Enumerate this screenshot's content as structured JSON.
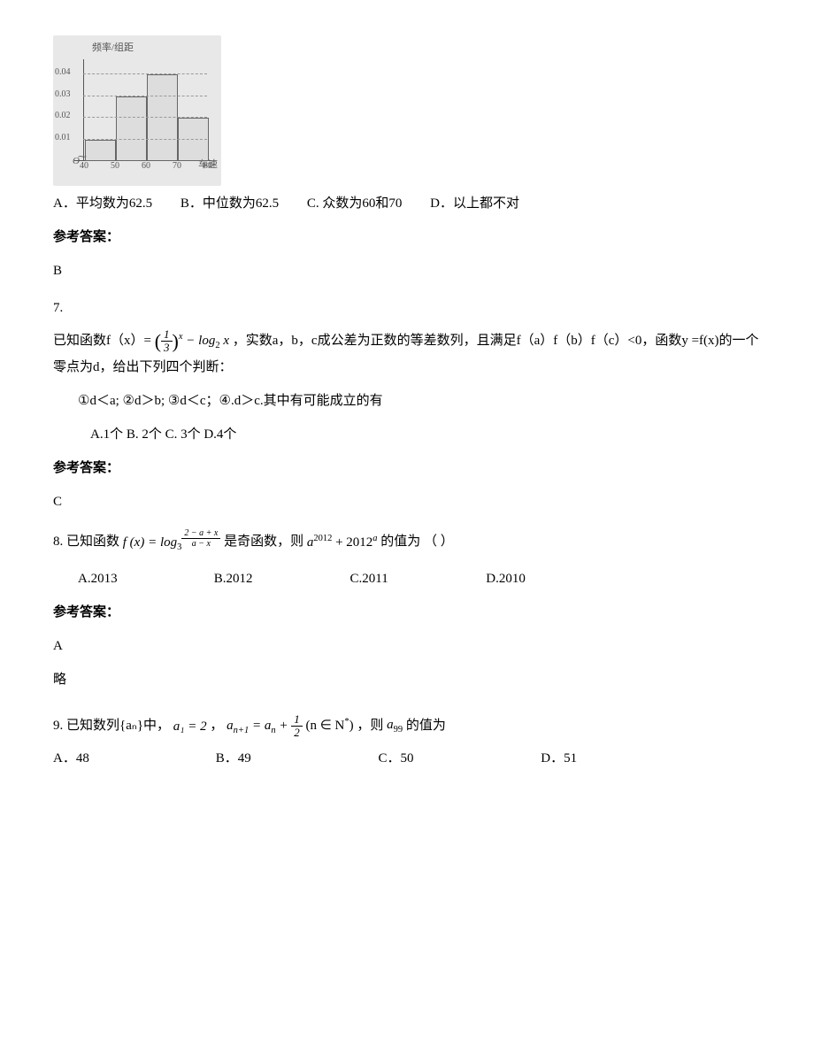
{
  "histogram": {
    "type": "histogram",
    "y_title": "频率/组距",
    "x_title": "车速",
    "origin_label": "O",
    "background_color": "#e8e8e8",
    "bar_border_color": "#666666",
    "axis_color": "#555555",
    "grid_dash_color": "#999999",
    "label_color": "#555555",
    "label_fontsize": 10,
    "title_fontsize": 11,
    "y_ticks": [
      "0.01",
      "0.02",
      "0.03",
      "0.04"
    ],
    "y_tick_values": [
      0.01,
      0.02,
      0.03,
      0.04
    ],
    "y_max": 0.045,
    "x_ticks": [
      "40",
      "50",
      "60",
      "70",
      "80"
    ],
    "x_tick_values": [
      40,
      50,
      60,
      70,
      80
    ],
    "bars": [
      {
        "x0": 40,
        "x1": 50,
        "height": 0.01
      },
      {
        "x0": 50,
        "x1": 60,
        "height": 0.03
      },
      {
        "x0": 60,
        "x1": 70,
        "height": 0.04
      },
      {
        "x0": 70,
        "x1": 80,
        "height": 0.02
      }
    ]
  },
  "q6": {
    "options": {
      "A": "A．平均数为62.5",
      "B": "B．中位数为62.5",
      "C": "C. 众数为60和70",
      "D": "D．以上都不对"
    },
    "answer_label": "参考答案：",
    "answer": "B"
  },
  "q7": {
    "number": "7.",
    "stem_before": "已知函数f（x）=",
    "formula_exp_frac_num": "1",
    "formula_exp_frac_den": "3",
    "formula_exp_power": "x",
    "formula_minus_log": "− log",
    "formula_log_base": "2",
    "formula_log_arg": " x",
    "stem_after1": "，实数a，b，c成公差为正数的等差数列，且满足f（a）f（b）f（c）<0，函数y =f(x)的一个零点为d，给出下列四个判断：",
    "judgments": "①d＜a;    ②d＞b;    ③d＜c；④.d＞c.其中有可能成立的有",
    "options_line": "A.1个 B. 2个 C. 3个 D.4个",
    "answer_label": "参考答案：",
    "answer": "C"
  },
  "q8": {
    "prefix": "8. 已知函数",
    "fx_label": "f (x) = log",
    "log_base": "3",
    "exp_num": "2 − a + x",
    "exp_den": "a − x",
    "mid": " 是奇函数，则",
    "a_term1_base": "a",
    "a_term1_exp": "2012",
    "plus": " + 2012",
    "a_term2_exp": "a",
    "tail": "的值为     （      ）",
    "options": {
      "A": "A.2013",
      "B": "B.2012",
      "C": "C.2011",
      "D": "D.2010"
    },
    "answer_label": "参考答案：",
    "answer": "A",
    "brief": "略"
  },
  "q9": {
    "prefix": "9. 已知数列{aₙ}中，",
    "a1": "a₁ = 2",
    "comma1": "，",
    "rec_left": "a",
    "rec_left_sub": "n+1",
    "rec_eq": " = a",
    "rec_right_sub": "n",
    "rec_plus": " + ",
    "rec_frac_num": "1",
    "rec_frac_den": "2",
    "rec_paren": "(n ∈ N",
    "rec_star": "*",
    "rec_close": ")",
    "tail": "，则",
    "a99_base": "a",
    "a99_sub": "99",
    "tail2": " 的值为",
    "options": {
      "A": "A．48",
      "B": "B．49",
      "C": "C．50",
      "D": "D．51"
    }
  }
}
